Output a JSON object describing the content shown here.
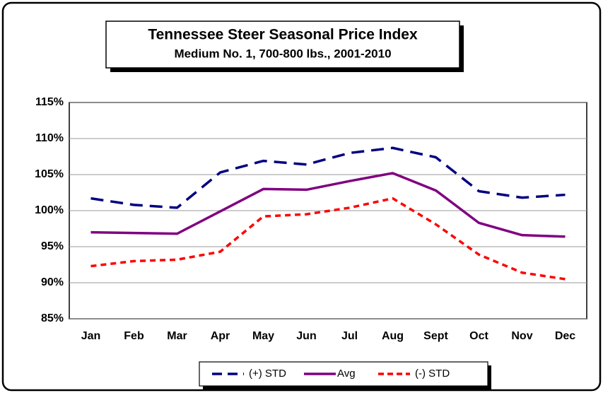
{
  "chart_data": {
    "type": "line",
    "title": "Tennessee Steer Seasonal Price Index",
    "subtitle": "Medium No. 1, 700-800 lbs., 2001-2010",
    "categories": [
      "Jan",
      "Feb",
      "Mar",
      "Apr",
      "May",
      "Jun",
      "Jul",
      "Aug",
      "Sept",
      "Oct",
      "Nov",
      "Dec"
    ],
    "series": [
      {
        "name": "(+) STD",
        "color": "#000080",
        "dash": "18,10",
        "values": [
          101.7,
          100.8,
          100.4,
          105.3,
          106.9,
          106.4,
          108.0,
          108.7,
          107.4,
          102.7,
          101.8,
          102.2
        ]
      },
      {
        "name": "Avg",
        "color": "#800080",
        "values": [
          97.0,
          96.9,
          96.8,
          99.9,
          103.0,
          102.9,
          104.1,
          105.2,
          102.8,
          98.3,
          96.6,
          96.4
        ]
      },
      {
        "name": "(-) STD",
        "color": "#ff0000",
        "dash": "8,6",
        "values": [
          92.3,
          93.0,
          93.2,
          94.3,
          99.2,
          99.5,
          100.4,
          101.7,
          98.1,
          93.9,
          91.4,
          90.5
        ]
      }
    ],
    "ylim": [
      85,
      115
    ],
    "yticks": [
      {
        "value": 85,
        "label": "85%"
      },
      {
        "value": 90,
        "label": "90%"
      },
      {
        "value": 95,
        "label": "95%"
      },
      {
        "value": 100,
        "label": "100%"
      },
      {
        "value": 105,
        "label": "105%"
      },
      {
        "value": 110,
        "label": "110%"
      },
      {
        "value": 115,
        "label": "115%"
      }
    ],
    "grid": true,
    "legend": "bottom"
  }
}
